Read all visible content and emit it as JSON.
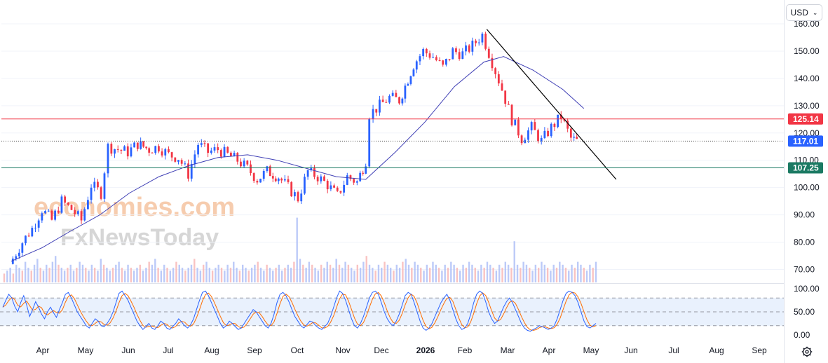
{
  "currency": {
    "label": "USD",
    "icon": "chevron-down-icon"
  },
  "settings": {
    "icon": "gear-icon"
  },
  "watermark": {
    "line1": "economies.com",
    "line2": "FxNewsToday"
  },
  "colors": {
    "up": "#2962ff",
    "down": "#f23645",
    "ma": "#3f3fb5",
    "resistance": "#f23645",
    "support": "#1b7a63",
    "current": "#2962ff",
    "trend": "#000000",
    "stoch_k": "#2962ff",
    "stoch_d": "#ff6d00"
  },
  "chart_data": [
    {
      "type": "candlestick",
      "price_axis": {
        "min": 65,
        "max": 160,
        "ticks": [
          "160.00",
          "150.00",
          "140.00",
          "130.00",
          "120.00",
          "110.00",
          "100.00",
          "90.00",
          "80.00",
          "70.00"
        ]
      },
      "time_axis": {
        "labels": [
          "Apr",
          "May",
          "Jun",
          "Jul",
          "Aug",
          "Sep",
          "Oct",
          "Nov",
          "Dec",
          "2026",
          "Feb",
          "Mar",
          "Apr",
          "May",
          "Jun",
          "Jul",
          "Aug",
          "Sep"
        ]
      },
      "levels": [
        {
          "name": "resistance",
          "value": 125.14,
          "label": "125.14"
        },
        {
          "name": "current",
          "value": 117.01,
          "label": "117.01"
        },
        {
          "name": "support",
          "value": 107.25,
          "label": "107.25"
        }
      ],
      "close_series": [
        {
          "x": "2025-03-24",
          "y": 72
        },
        {
          "x": "2025-04-02",
          "y": 80
        },
        {
          "x": "2025-04-09",
          "y": 85
        },
        {
          "x": "2025-04-16",
          "y": 92
        },
        {
          "x": "2025-04-23",
          "y": 88
        },
        {
          "x": "2025-04-30",
          "y": 95
        },
        {
          "x": "2025-05-07",
          "y": 92
        },
        {
          "x": "2025-05-14",
          "y": 88
        },
        {
          "x": "2025-05-21",
          "y": 101
        },
        {
          "x": "2025-05-28",
          "y": 98
        },
        {
          "x": "2025-06-02",
          "y": 115
        },
        {
          "x": "2025-06-09",
          "y": 114
        },
        {
          "x": "2025-06-16",
          "y": 113
        },
        {
          "x": "2025-06-23",
          "y": 116
        },
        {
          "x": "2025-07-01",
          "y": 114
        },
        {
          "x": "2025-07-08",
          "y": 115
        },
        {
          "x": "2025-07-15",
          "y": 112
        },
        {
          "x": "2025-07-22",
          "y": 111
        },
        {
          "x": "2025-07-29",
          "y": 105
        },
        {
          "x": "2025-08-05",
          "y": 116
        },
        {
          "x": "2025-08-12",
          "y": 113
        },
        {
          "x": "2025-08-19",
          "y": 114
        },
        {
          "x": "2025-08-26",
          "y": 112
        },
        {
          "x": "2025-09-02",
          "y": 110
        },
        {
          "x": "2025-09-09",
          "y": 107
        },
        {
          "x": "2025-09-16",
          "y": 103
        },
        {
          "x": "2025-09-23",
          "y": 106
        },
        {
          "x": "2025-10-01",
          "y": 104
        },
        {
          "x": "2025-10-08",
          "y": 100
        },
        {
          "x": "2025-10-15",
          "y": 96
        },
        {
          "x": "2025-10-22",
          "y": 106
        },
        {
          "x": "2025-10-29",
          "y": 104
        },
        {
          "x": "2025-11-05",
          "y": 101
        },
        {
          "x": "2025-11-12",
          "y": 97
        },
        {
          "x": "2025-11-19",
          "y": 104
        },
        {
          "x": "2025-11-26",
          "y": 102
        },
        {
          "x": "2025-12-02",
          "y": 110
        },
        {
          "x": "2025-12-05",
          "y": 127
        },
        {
          "x": "2025-12-12",
          "y": 130
        },
        {
          "x": "2025-12-19",
          "y": 133
        },
        {
          "x": "2025-12-26",
          "y": 132
        },
        {
          "x": "2026-01-05",
          "y": 145
        },
        {
          "x": "2026-01-12",
          "y": 150
        },
        {
          "x": "2026-01-19",
          "y": 148
        },
        {
          "x": "2026-01-26",
          "y": 144
        },
        {
          "x": "2026-02-02",
          "y": 150
        },
        {
          "x": "2026-02-09",
          "y": 149
        },
        {
          "x": "2026-02-16",
          "y": 152
        },
        {
          "x": "2026-02-23",
          "y": 156
        },
        {
          "x": "2026-03-02",
          "y": 146
        },
        {
          "x": "2026-03-09",
          "y": 136
        },
        {
          "x": "2026-03-16",
          "y": 125
        },
        {
          "x": "2026-03-23",
          "y": 118
        },
        {
          "x": "2026-03-30",
          "y": 122
        },
        {
          "x": "2026-04-06",
          "y": 117
        },
        {
          "x": "2026-04-13",
          "y": 122
        },
        {
          "x": "2026-04-20",
          "y": 126
        },
        {
          "x": "2026-04-27",
          "y": 118
        },
        {
          "x": "2026-05-01",
          "y": 117
        }
      ],
      "moving_average": [
        {
          "x": "2025-03-24",
          "y": 73
        },
        {
          "x": "2025-04-15",
          "y": 78
        },
        {
          "x": "2025-05-05",
          "y": 84
        },
        {
          "x": "2025-05-26",
          "y": 90
        },
        {
          "x": "2025-06-16",
          "y": 98
        },
        {
          "x": "2025-07-07",
          "y": 104
        },
        {
          "x": "2025-07-28",
          "y": 108
        },
        {
          "x": "2025-08-18",
          "y": 111
        },
        {
          "x": "2025-09-08",
          "y": 112
        },
        {
          "x": "2025-09-29",
          "y": 110
        },
        {
          "x": "2025-10-20",
          "y": 107
        },
        {
          "x": "2025-11-10",
          "y": 104
        },
        {
          "x": "2025-12-01",
          "y": 103
        },
        {
          "x": "2025-12-22",
          "y": 113
        },
        {
          "x": "2026-01-12",
          "y": 124
        },
        {
          "x": "2026-02-02",
          "y": 137
        },
        {
          "x": "2026-02-23",
          "y": 146
        },
        {
          "x": "2026-03-09",
          "y": 148
        },
        {
          "x": "2026-03-30",
          "y": 143
        },
        {
          "x": "2026-04-20",
          "y": 136
        },
        {
          "x": "2026-05-05",
          "y": 129
        }
      ],
      "trendline": [
        {
          "x": "2026-02-25",
          "y": 158
        },
        {
          "x": "2026-05-28",
          "y": 103
        }
      ]
    },
    {
      "type": "volume",
      "series": [
        3,
        4,
        5,
        3,
        6,
        5,
        4,
        7,
        5,
        4,
        6,
        8,
        5,
        4,
        6,
        5,
        7,
        9,
        6,
        5,
        4,
        5,
        6,
        4,
        5,
        7,
        6,
        5,
        4,
        6,
        5,
        4,
        8,
        6,
        5,
        4,
        5,
        6,
        7,
        5,
        4,
        6,
        5,
        4,
        5,
        6,
        4,
        5,
        7,
        6,
        8,
        5,
        4,
        6,
        5,
        4,
        5,
        7,
        6,
        5,
        4,
        5,
        6,
        8,
        5,
        4,
        6,
        7,
        5,
        4,
        5,
        6,
        5,
        4,
        6,
        5,
        7,
        5,
        4,
        6,
        5,
        4,
        5,
        6,
        7,
        5,
        4,
        6,
        5,
        4,
        5,
        6,
        4,
        5,
        6,
        5,
        7,
        22,
        8,
        6,
        5,
        7,
        6,
        5,
        4,
        6,
        5,
        7,
        6,
        5,
        8,
        6,
        5,
        7,
        6,
        5,
        4,
        6,
        5,
        7,
        9,
        6,
        5,
        4,
        6,
        5,
        7,
        6,
        5,
        4,
        6,
        5,
        7,
        8,
        6,
        5,
        7,
        6,
        5,
        4,
        6,
        5,
        7,
        6,
        5,
        4,
        6,
        5,
        7,
        6,
        5,
        4,
        6,
        5,
        7,
        6,
        5,
        4,
        6,
        5,
        7,
        6,
        5,
        4,
        6,
        5,
        7,
        6,
        5,
        14,
        6,
        5,
        7,
        6,
        5,
        4,
        6,
        5,
        7,
        6,
        5,
        4,
        6,
        5,
        7,
        6,
        5,
        4,
        6,
        5,
        7,
        6,
        5,
        4,
        6,
        5,
        7
      ]
    },
    {
      "type": "line",
      "name": "stochastic",
      "y_axis": {
        "min": 0,
        "max": 100,
        "ticks": [
          "100.00",
          "50.00",
          "0.00"
        ]
      },
      "bands": [
        80,
        50,
        20
      ],
      "k": [
        60,
        75,
        88,
        80,
        62,
        50,
        70,
        85,
        65,
        40,
        55,
        72,
        60,
        45,
        35,
        50,
        60,
        48,
        38,
        55,
        70,
        88,
        92,
        80,
        65,
        50,
        40,
        30,
        20,
        15,
        25,
        35,
        30,
        20,
        18,
        25,
        35,
        50,
        70,
        90,
        95,
        85,
        75,
        60,
        45,
        30,
        20,
        12,
        18,
        25,
        15,
        12,
        20,
        30,
        25,
        15,
        12,
        18,
        25,
        35,
        28,
        20,
        15,
        22,
        35,
        55,
        75,
        92,
        95,
        85,
        70,
        55,
        40,
        25,
        15,
        20,
        30,
        25,
        18,
        12,
        15,
        25,
        35,
        45,
        55,
        50,
        40,
        30,
        20,
        15,
        25,
        45,
        70,
        88,
        92,
        85,
        72,
        55,
        40,
        30,
        20,
        15,
        22,
        30,
        28,
        20,
        15,
        12,
        18,
        25,
        40,
        60,
        80,
        95,
        90,
        75,
        55,
        35,
        20,
        15,
        25,
        40,
        60,
        80,
        92,
        95,
        88,
        70,
        50,
        35,
        25,
        20,
        30,
        45,
        65,
        85,
        92,
        88,
        70,
        50,
        30,
        15,
        10,
        15,
        25,
        40,
        55,
        70,
        80,
        88,
        75,
        55,
        35,
        20,
        12,
        15,
        25,
        45,
        70,
        88,
        95,
        90,
        72,
        50,
        35,
        25,
        30,
        45,
        60,
        72,
        80,
        70,
        55,
        40,
        25,
        15,
        10,
        8,
        12,
        15,
        20,
        18,
        15,
        12,
        15,
        20,
        35,
        55,
        75,
        90,
        95,
        92,
        85,
        70,
        50,
        30,
        18,
        15,
        20,
        25
      ]
    }
  ]
}
